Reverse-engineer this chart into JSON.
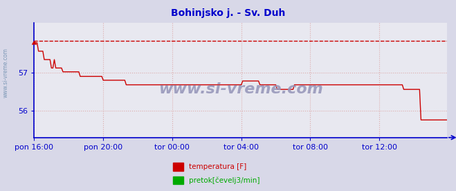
{
  "title": "Bohinjsko j. - Sv. Duh",
  "title_color": "#0000cc",
  "title_fontsize": 10,
  "bg_color": "#d8d8e8",
  "plot_bg_color": "#e8e8f0",
  "grid_color": "#ddaaaa",
  "grid_style": ":",
  "axis_color": "#0000cc",
  "tick_color": "#0000cc",
  "watermark": "www.si-vreme.com",
  "watermark_color": "#9999bb",
  "yticks": [
    56.0,
    57.0
  ],
  "ylim": [
    55.3,
    58.3
  ],
  "xlim": [
    0,
    287
  ],
  "xtick_positions": [
    0,
    48,
    96,
    144,
    192,
    240
  ],
  "xtick_labels": [
    "pon 16:00",
    "pon 20:00",
    "tor 00:00",
    "tor 04:00",
    "tor 08:00",
    "tor 12:00"
  ],
  "dashed_line_y": 57.84,
  "dashed_color": "#cc0000",
  "line_color": "#cc0000",
  "legend_items": [
    {
      "label": "temperatura [F]",
      "color": "#cc0000"
    },
    {
      "label": "pretok[čevelj3/min]",
      "color": "#00aa00"
    }
  ],
  "temperature_data": [
    57.78,
    57.78,
    57.78,
    57.56,
    57.56,
    57.56,
    57.56,
    57.34,
    57.34,
    57.34,
    57.34,
    57.34,
    57.12,
    57.12,
    57.34,
    57.12,
    57.12,
    57.12,
    57.12,
    57.12,
    57.02,
    57.02,
    57.02,
    57.02,
    57.02,
    57.02,
    57.02,
    57.02,
    57.02,
    57.02,
    57.02,
    57.02,
    56.9,
    56.9,
    56.9,
    56.9,
    56.9,
    56.9,
    56.9,
    56.9,
    56.9,
    56.9,
    56.9,
    56.9,
    56.9,
    56.9,
    56.9,
    56.9,
    56.8,
    56.8,
    56.8,
    56.8,
    56.8,
    56.8,
    56.8,
    56.8,
    56.8,
    56.8,
    56.8,
    56.8,
    56.8,
    56.8,
    56.8,
    56.8,
    56.68,
    56.68,
    56.68,
    56.68,
    56.68,
    56.68,
    56.68,
    56.68,
    56.68,
    56.68,
    56.68,
    56.68,
    56.68,
    56.68,
    56.68,
    56.68,
    56.68,
    56.68,
    56.68,
    56.68,
    56.68,
    56.68,
    56.68,
    56.68,
    56.68,
    56.68,
    56.68,
    56.68,
    56.68,
    56.68,
    56.68,
    56.68,
    56.68,
    56.68,
    56.68,
    56.68,
    56.68,
    56.68,
    56.68,
    56.68,
    56.68,
    56.68,
    56.68,
    56.68,
    56.68,
    56.68,
    56.68,
    56.68,
    56.68,
    56.68,
    56.68,
    56.68,
    56.68,
    56.68,
    56.68,
    56.68,
    56.68,
    56.68,
    56.68,
    56.68,
    56.68,
    56.68,
    56.68,
    56.68,
    56.68,
    56.68,
    56.68,
    56.68,
    56.68,
    56.68,
    56.68,
    56.68,
    56.68,
    56.68,
    56.68,
    56.68,
    56.68,
    56.68,
    56.68,
    56.68,
    56.68,
    56.78,
    56.78,
    56.78,
    56.78,
    56.78,
    56.78,
    56.78,
    56.78,
    56.78,
    56.78,
    56.78,
    56.78,
    56.68,
    56.68,
    56.68,
    56.68,
    56.68,
    56.68,
    56.68,
    56.68,
    56.68,
    56.68,
    56.68,
    56.68,
    56.56,
    56.56,
    56.56,
    56.56,
    56.56,
    56.56,
    56.56,
    56.56,
    56.56,
    56.56,
    56.56,
    56.56,
    56.68,
    56.68,
    56.68,
    56.68,
    56.68,
    56.68,
    56.68,
    56.68,
    56.68,
    56.68,
    56.68,
    56.68,
    56.68,
    56.68,
    56.68,
    56.68,
    56.68,
    56.68,
    56.68,
    56.68,
    56.68,
    56.68,
    56.68,
    56.68,
    56.68,
    56.68,
    56.68,
    56.68,
    56.68,
    56.68,
    56.68,
    56.68,
    56.68,
    56.68,
    56.68,
    56.68,
    56.68,
    56.68,
    56.68,
    56.68,
    56.68,
    56.68,
    56.68,
    56.68,
    56.68,
    56.68,
    56.68,
    56.68,
    56.68,
    56.68,
    56.68,
    56.68,
    56.68,
    56.68,
    56.68,
    56.68,
    56.68,
    56.68,
    56.68,
    56.68,
    56.68,
    56.68,
    56.68,
    56.68,
    56.68,
    56.68,
    56.68,
    56.68,
    56.68,
    56.68,
    56.68,
    56.68,
    56.68,
    56.68,
    56.68,
    56.68,
    56.56,
    56.56,
    56.56,
    56.56,
    56.56,
    56.56,
    56.56,
    56.56,
    56.56,
    56.56,
    56.56,
    56.56,
    55.76,
    55.76,
    55.76,
    55.76,
    55.76,
    55.76,
    55.76,
    55.76,
    55.76,
    55.76,
    55.76,
    55.76,
    55.76,
    55.76,
    55.76,
    55.76,
    55.76,
    55.76,
    55.76,
    55.76,
    55.76
  ]
}
